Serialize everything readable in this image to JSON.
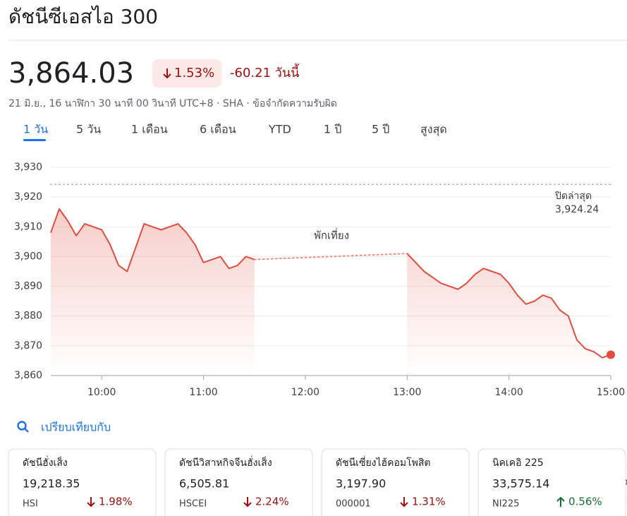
{
  "header": {
    "title": "ดัชนีซีเอสไอ 300"
  },
  "quote": {
    "price": "3,864.03",
    "change_percent": "1.53%",
    "direction": "down",
    "change": "-60.21 วันนี้",
    "meta": "21 มิ.ย., 16 นาฬิกา 30 นาที 00 วินาที UTC+8 · SHA · ข้อจำกัดความรับผิด"
  },
  "tabs": {
    "items": [
      "1 วัน",
      "5 วัน",
      "1 เดือน",
      "6 เดือน",
      "YTD",
      "1 ปี",
      "5 ปี",
      "สูงสุด"
    ],
    "selected": 0
  },
  "chart_data": {
    "type": "line",
    "color": "#e34d3f",
    "grid": true,
    "x": [
      570,
      575,
      580,
      585,
      590,
      595,
      600,
      605,
      610,
      615,
      620,
      625,
      630,
      635,
      640,
      645,
      650,
      655,
      660,
      665,
      670,
      675,
      680,
      685,
      690,
      720,
      780,
      785,
      790,
      795,
      800,
      805,
      810,
      815,
      820,
      825,
      830,
      835,
      840,
      845,
      850,
      855,
      860,
      865,
      870,
      875,
      880,
      885,
      890,
      895,
      900
    ],
    "values": [
      3908,
      3916,
      3912,
      3907,
      3911,
      3910,
      3909,
      3904,
      3897,
      3895,
      3903,
      3911,
      3910,
      3909,
      3910,
      3911,
      3908,
      3904,
      3898,
      3899,
      3900,
      3896,
      3897,
      3900,
      3899,
      null,
      3901,
      3898,
      3895,
      3893,
      3891,
      3890,
      3889,
      3891,
      3894,
      3896,
      3895,
      3894,
      3891,
      3887,
      3884,
      3885,
      3887,
      3886,
      3882,
      3880,
      3872,
      3869,
      3868,
      3866,
      3867
    ],
    "xlim": [
      570,
      900
    ],
    "xticks": [
      {
        "value": 600,
        "label": "10:00"
      },
      {
        "value": 660,
        "label": "11:00"
      },
      {
        "value": 720,
        "label": "12:00"
      },
      {
        "value": 780,
        "label": "13:00"
      },
      {
        "value": 840,
        "label": "14:00"
      },
      {
        "value": 900,
        "label": "15:00"
      }
    ],
    "ylim": [
      3860,
      3930
    ],
    "yticks": [
      {
        "value": 3860,
        "label": "3,860"
      },
      {
        "value": 3870,
        "label": "3,870"
      },
      {
        "value": 3880,
        "label": "3,880"
      },
      {
        "value": 3890,
        "label": "3,890"
      },
      {
        "value": 3900,
        "label": "3,900"
      },
      {
        "value": 3910,
        "label": "3,910"
      },
      {
        "value": 3920,
        "label": "3,920"
      },
      {
        "value": 3930,
        "label": "3,930"
      }
    ],
    "reference_line": {
      "label": "ปิดล่าสุด",
      "value": 3924.24,
      "value_label": "3,924.24"
    },
    "annotation": "พักเที่ยง"
  },
  "compare": {
    "label": "เปรียบเทียบกับ",
    "cards": [
      {
        "name": "ดัชนีฮั่งเส็ง",
        "value": "19,218.35",
        "symbol": "HSI",
        "change": "1.98%",
        "direction": "down"
      },
      {
        "name": "ดัชนีวิสาหกิจจีนฮั่งเส็ง",
        "value": "6,505.81",
        "symbol": "HSCEI",
        "change": "2.24%",
        "direction": "down"
      },
      {
        "name": "ดัชนีเซี่ยงไฮ้คอมโพสิต",
        "value": "3,197.90",
        "symbol": "000001",
        "change": "1.31%",
        "direction": "down"
      },
      {
        "name": "นิคเคอิ 225",
        "value": "33,575.14",
        "symbol": "NI225",
        "change": "0.56%",
        "direction": "up"
      }
    ]
  }
}
